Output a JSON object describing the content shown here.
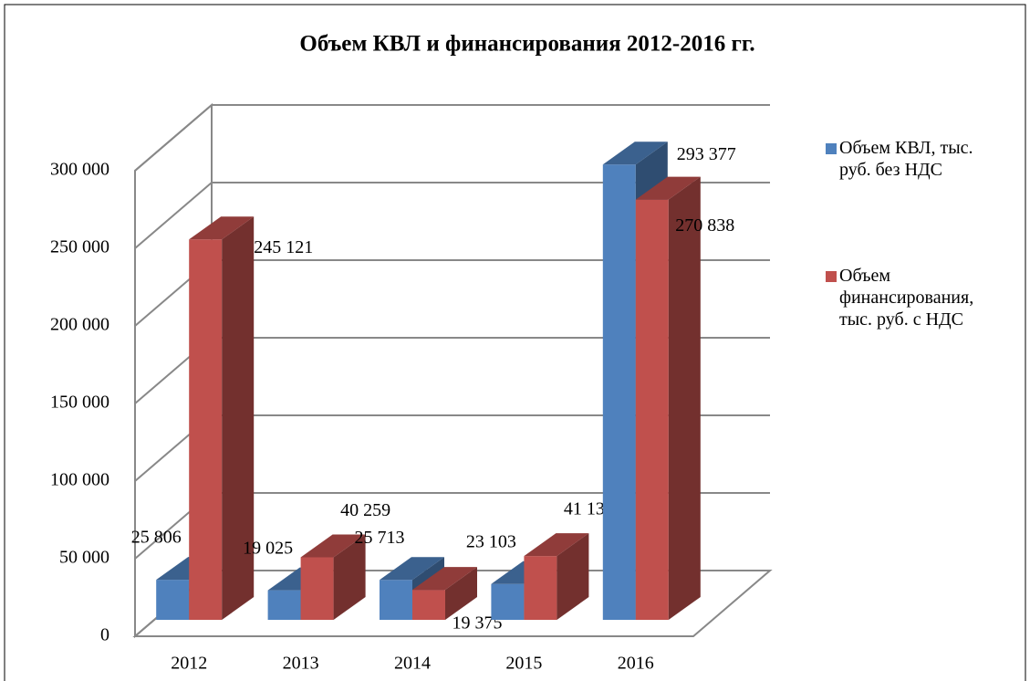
{
  "chart_data": {
    "type": "bar3d",
    "title": "Объем КВЛ и финансирования 2012-2016 гг.",
    "categories": [
      "2012",
      "2013",
      "2014",
      "2015",
      "2016"
    ],
    "series": [
      {
        "name": "Объем КВЛ, тыс. руб. без НДС",
        "color": "#4f81bd",
        "values": [
          25806,
          19025,
          25713,
          23103,
          293377
        ],
        "value_labels": [
          "25 806",
          "19 025",
          "25 713",
          "23 103",
          "293 377"
        ]
      },
      {
        "name": "Объем финансирования, тыс. руб. с НДС",
        "color": "#c0504d",
        "values": [
          245121,
          40259,
          19375,
          41133,
          270838
        ],
        "value_labels": [
          "245 121",
          "40 259",
          "19 375",
          "41 133",
          "270 838"
        ]
      }
    ],
    "ylim": [
      0,
      300000
    ],
    "yticks": [
      0,
      {
        "value": 50000,
        "label": "50 000"
      },
      {
        "value": 100000,
        "label": "100 000"
      },
      {
        "value": 150000,
        "label": "150 000"
      },
      {
        "value": 200000,
        "label": "200 000"
      },
      {
        "value": 250000,
        "label": "250 000"
      },
      {
        "value": 300000,
        "label": "300 000"
      }
    ],
    "grid": true,
    "legend": "right"
  }
}
